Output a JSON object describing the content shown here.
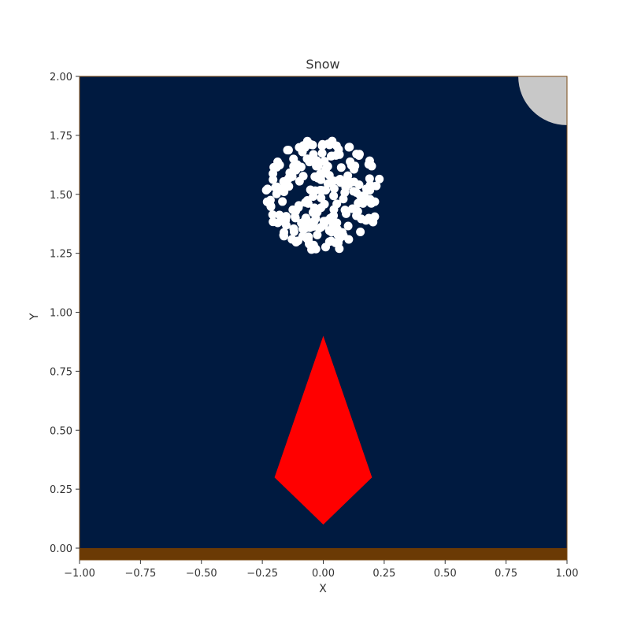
{
  "chart_data": {
    "type": "scatter",
    "title": "Snow",
    "xlabel": "X",
    "ylabel": "Y",
    "xlim": [
      -1.0,
      1.0
    ],
    "ylim": [
      -0.05,
      2.0
    ],
    "xticks": [
      "−1.00",
      "−0.75",
      "−0.50",
      "−0.25",
      "0.00",
      "0.25",
      "0.50",
      "0.75",
      "1.00"
    ],
    "xtick_values": [
      -1.0,
      -0.75,
      -0.5,
      -0.25,
      0.0,
      0.25,
      0.5,
      0.75,
      1.0
    ],
    "yticks": [
      "0.00",
      "0.25",
      "0.50",
      "0.75",
      "1.00",
      "1.25",
      "1.50",
      "1.75",
      "2.00"
    ],
    "ytick_values": [
      0.0,
      0.25,
      0.5,
      0.75,
      1.0,
      1.25,
      1.5,
      1.75,
      2.0
    ],
    "grid": false,
    "colors": {
      "background": "#001a40",
      "ground": "#6b3a05",
      "kite": "#ff0000",
      "moon": "#c8c8c8",
      "snow": "#ffffff"
    },
    "ground": {
      "y_top": 0.0
    },
    "moon": {
      "cx": 1.0,
      "cy": 2.0,
      "r": 0.2
    },
    "kite": {
      "points": [
        [
          0.0,
          0.9
        ],
        [
          0.2,
          0.3
        ],
        [
          0.0,
          0.1
        ],
        [
          -0.2,
          0.3
        ]
      ]
    },
    "snow_cluster": {
      "cx": 0.0,
      "cy": 1.5,
      "r": 0.24,
      "count": 230
    }
  }
}
